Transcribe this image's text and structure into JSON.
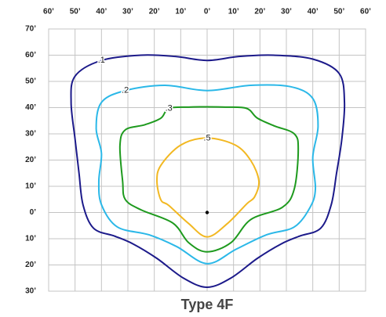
{
  "chart_data": {
    "type": "line",
    "title": "Type 4F",
    "xlim": [
      -60,
      60
    ],
    "ylim": [
      -30,
      70
    ],
    "xticks": [
      {
        "value": -60,
        "label": "60’"
      },
      {
        "value": -50,
        "label": "50’"
      },
      {
        "value": -40,
        "label": "40’"
      },
      {
        "value": -30,
        "label": "30’"
      },
      {
        "value": -20,
        "label": "20’"
      },
      {
        "value": -10,
        "label": "10’"
      },
      {
        "value": 0,
        "label": "0’"
      },
      {
        "value": 10,
        "label": "10’"
      },
      {
        "value": 20,
        "label": "20’"
      },
      {
        "value": 30,
        "label": "30’"
      },
      {
        "value": 40,
        "label": "40’"
      },
      {
        "value": 50,
        "label": "50’"
      },
      {
        "value": 60,
        "label": "60’"
      }
    ],
    "yticks": [
      {
        "value": 70,
        "label": "70’"
      },
      {
        "value": 60,
        "label": "60’"
      },
      {
        "value": 50,
        "label": "50’"
      },
      {
        "value": 40,
        "label": "40’"
      },
      {
        "value": 30,
        "label": "30’"
      },
      {
        "value": 20,
        "label": "20’"
      },
      {
        "value": 10,
        "label": "10’"
      },
      {
        "value": 0,
        "label": "0’"
      },
      {
        "value": -10,
        "label": "10’"
      },
      {
        "value": -20,
        "label": "20’"
      },
      {
        "value": -30,
        "label": "30’"
      }
    ],
    "grid": true,
    "series": [
      {
        "name": ".1",
        "color": "#1c1a8a",
        "x": [
          0,
          -12,
          -25,
          -40,
          -50,
          -51.5,
          -50,
          -48.5,
          -47,
          -43,
          -35,
          -28,
          -19,
          -9,
          0,
          9,
          19,
          28,
          35,
          43,
          47,
          49,
          51,
          52,
          50,
          40,
          25,
          12
        ],
        "values": [
          58,
          59.5,
          60,
          58,
          52,
          42,
          28,
          15,
          3,
          -6,
          -9,
          -12,
          -17.5,
          -25,
          -28.5,
          -25,
          -17.5,
          -12,
          -9,
          -6,
          3,
          15,
          28,
          42,
          53,
          58.5,
          60,
          59.5
        ]
      },
      {
        "name": ".2",
        "color": "#2bb8e8",
        "x": [
          0,
          -16,
          -31,
          -40,
          -42,
          -40,
          -41,
          -40,
          -34,
          -22,
          -11.5,
          0,
          11,
          22.5,
          33,
          39,
          41,
          40,
          42,
          40,
          31.5,
          16.5
        ],
        "values": [
          46.5,
          48.5,
          46.5,
          42,
          32,
          22.5,
          12,
          3,
          -5.5,
          -8.5,
          -13,
          -19.5,
          -14,
          -8.5,
          -5.5,
          2,
          9,
          21,
          33,
          43.5,
          48,
          48.5
        ]
      },
      {
        "name": ".3",
        "color": "#1e9a1e",
        "x": [
          0,
          -7,
          -14.5,
          -17.5,
          -23.5,
          -31,
          -33,
          -32,
          -31,
          -25,
          -13,
          -7,
          0,
          9,
          16.5,
          28.5,
          33,
          34.5,
          33,
          25.5,
          19,
          15,
          7
        ],
        "values": [
          40.3,
          40.2,
          39.7,
          36,
          33.5,
          31.5,
          25.5,
          12,
          5,
          1,
          -4,
          -11.5,
          -15,
          -11.5,
          -2.7,
          2,
          9,
          24,
          30,
          33,
          36,
          39.7,
          40.2
        ]
      },
      {
        "name": ".5",
        "color": "#f2b822",
        "x": [
          0,
          -10,
          -17.5,
          -19,
          -17.5,
          -14.5,
          -7,
          0,
          7.7,
          15,
          18,
          19.6,
          16.6,
          10.7
        ],
        "values": [
          28.4,
          25.7,
          18,
          12,
          4.8,
          2.7,
          -4.2,
          -9.3,
          -4.2,
          3.3,
          6,
          12,
          19.7,
          25.7
        ]
      }
    ]
  }
}
